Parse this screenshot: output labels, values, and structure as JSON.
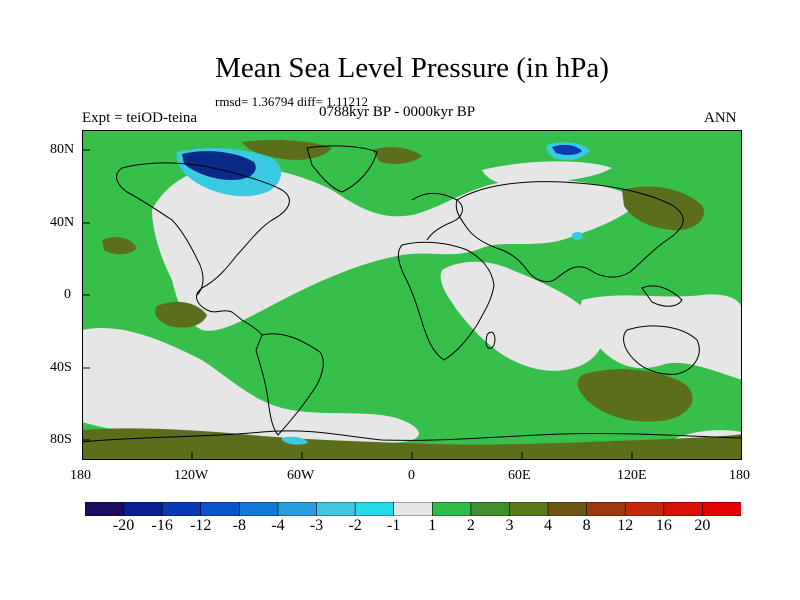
{
  "title": "Mean Sea Level Pressure (in hPa)",
  "stats": "rmsd= 1.36794 diff= 1.11212",
  "left_label": "Expt = teiOD-teina",
  "center_label": "0788kyr BP - 0000kyr BP",
  "right_label": "ANN",
  "y_ticks": [
    "80N",
    "40N",
    "0",
    "40S",
    "80S"
  ],
  "x_ticks": [
    "180",
    "120W",
    "60W",
    "0",
    "60E",
    "120E",
    "180"
  ],
  "colorbar": {
    "labels": [
      "-20",
      "-16",
      "-12",
      "-8",
      "-4",
      "-3",
      "-2",
      "-1",
      "1",
      "2",
      "3",
      "4",
      "8",
      "12",
      "16",
      "20"
    ],
    "colors": [
      "#1b0a5e",
      "#08208f",
      "#0a3ab4",
      "#0b55c8",
      "#1479d6",
      "#2a9edc",
      "#40c4e2",
      "#22dbe8",
      "#e6e6e6",
      "#2fbb4a",
      "#3f8f2c",
      "#5c7a1a",
      "#6e5514",
      "#9a3a10",
      "#c2280c",
      "#d81008",
      "#e60000"
    ]
  },
  "colors": {
    "background_field": "#36bf4a",
    "near_zero": "#e6e6e6",
    "positive_strong": "#5a6e1c",
    "negative_blue": "#0a2a8a",
    "negative_cyan": "#39c9e0",
    "coast": "#000000"
  }
}
